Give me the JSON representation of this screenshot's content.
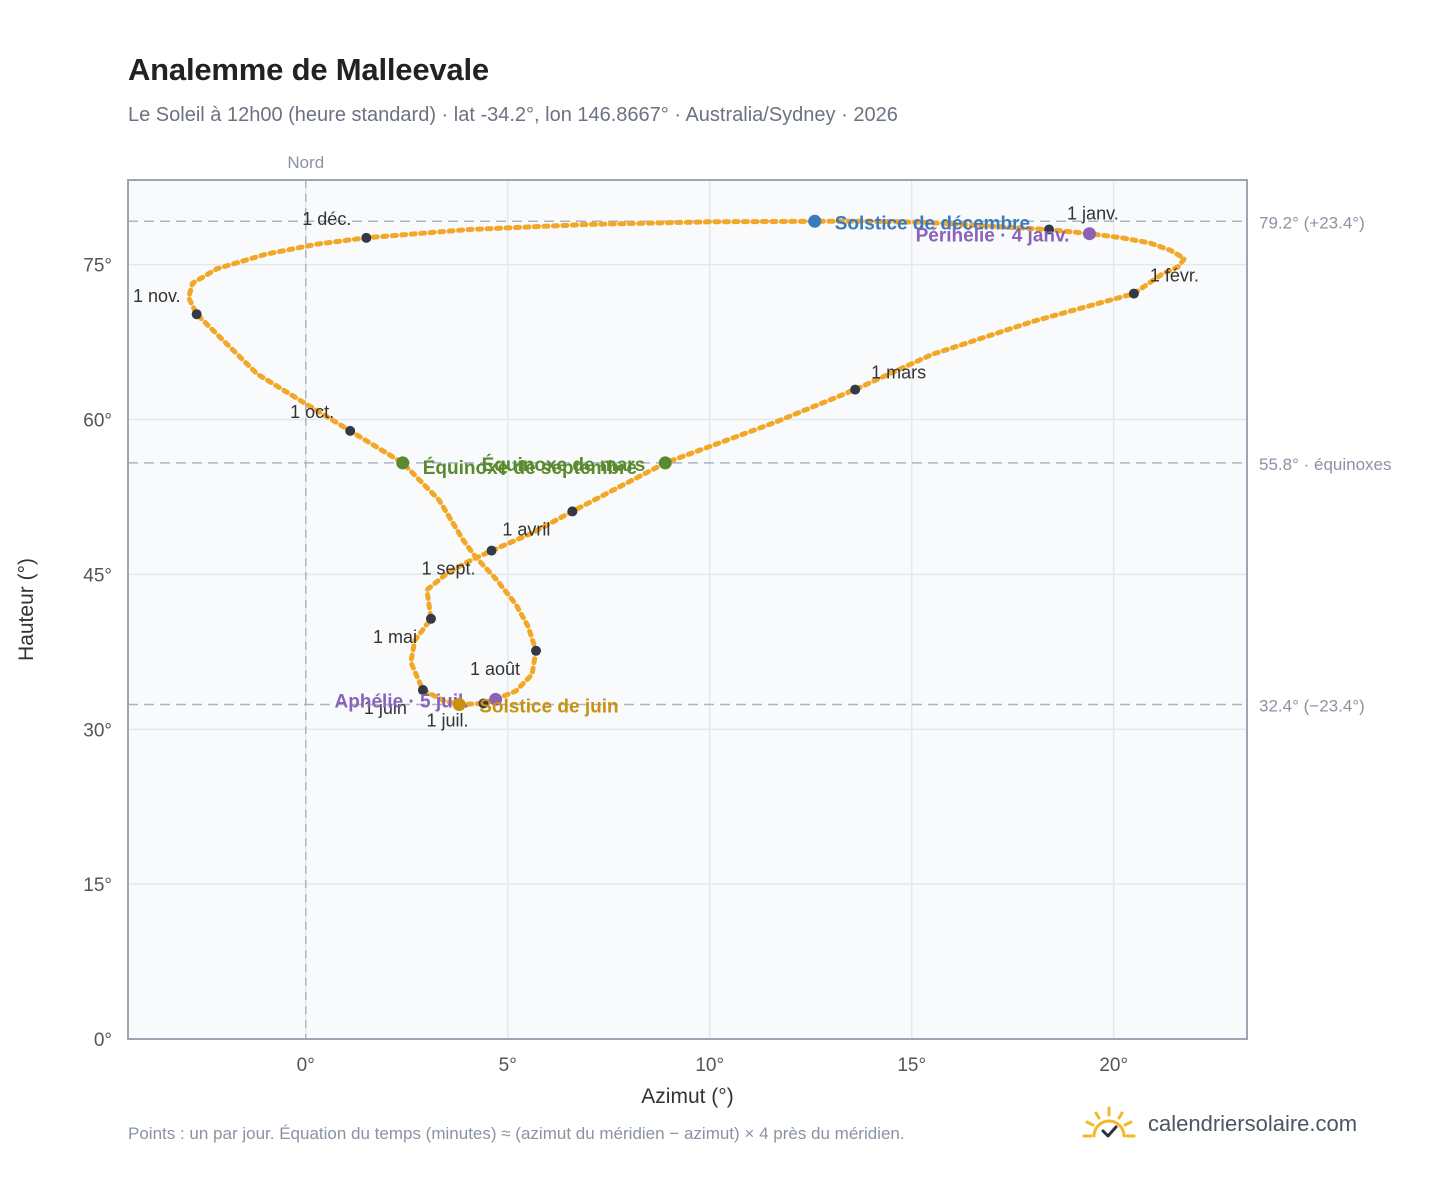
{
  "header": {
    "title": "Analemme de Malleevale",
    "subtitle": "Le Soleil à 12h00 (heure standard) · lat -34.2°, lon 146.8667° · Australia/Sydney · 2026"
  },
  "footer": {
    "note": "Points : un par jour. Équation du temps (minutes) ≈ (azimut du méridien − azimut) × 4 près du méridien.",
    "brand": "calendriersolaire.com",
    "brand_icon": "sun-check-icon"
  },
  "colors": {
    "curve": "#f2a727",
    "month_dot": "#333a45",
    "december": "#3a7abd",
    "perihelion": "#8a63b8",
    "equinox": "#5a8a2e",
    "june": "#c8920f",
    "guide": "#a8b5c3",
    "plot_bg": "#f8fafc",
    "grid": "#e3e8ee"
  },
  "chart_data": {
    "type": "scatter",
    "xlabel": "Azimut (°)",
    "ylabel": "Hauteur (°)",
    "xlim": [
      -4.4,
      23.3
    ],
    "ylim": [
      0,
      83.2
    ],
    "xticks": [
      "0°",
      "5°",
      "10°",
      "15°",
      "20°"
    ],
    "xtick_values": [
      0,
      5,
      10,
      15,
      20
    ],
    "yticks": [
      "0°",
      "15°",
      "30°",
      "45°",
      "60°",
      "75°"
    ],
    "ytick_values": [
      0,
      15,
      30,
      45,
      60,
      75
    ],
    "grid": true,
    "meridian": {
      "x": 0,
      "label": "Nord"
    },
    "reference_lines": [
      {
        "y": 79.2,
        "label": "79.2° (+23.4°)"
      },
      {
        "y": 55.8,
        "label": "55.8° · équinoxes"
      },
      {
        "y": 32.4,
        "label": "32.4° (−23.4°)"
      }
    ],
    "path": [
      [
        15.3,
        79.1
      ],
      [
        17.1,
        78.7
      ],
      [
        18.4,
        78.4
      ],
      [
        19.4,
        78.0
      ],
      [
        20.2,
        77.6
      ],
      [
        20.9,
        77.1
      ],
      [
        21.4,
        76.4
      ],
      [
        21.75,
        75.6
      ],
      [
        21.6,
        74.8
      ],
      [
        21.2,
        74.1
      ],
      [
        20.5,
        72.2
      ],
      [
        18.0,
        69.5
      ],
      [
        15.5,
        66.3
      ],
      [
        13.6,
        62.9
      ],
      [
        11.6,
        59.7
      ],
      [
        8.9,
        55.8
      ],
      [
        6.6,
        51.1
      ],
      [
        5.6,
        49.0
      ],
      [
        4.6,
        47.3
      ],
      [
        4.0,
        46.2
      ],
      [
        3.5,
        45.1
      ],
      [
        3.0,
        43.5
      ],
      [
        3.1,
        40.7
      ],
      [
        2.7,
        38.6
      ],
      [
        2.6,
        36.5
      ],
      [
        2.9,
        33.8
      ],
      [
        3.4,
        32.8
      ],
      [
        3.8,
        32.4
      ],
      [
        4.4,
        32.5
      ],
      [
        4.7,
        32.9
      ],
      [
        5.2,
        33.7
      ],
      [
        5.6,
        35.3
      ],
      [
        5.7,
        37.6
      ],
      [
        5.5,
        40.0
      ],
      [
        5.2,
        42.1
      ],
      [
        4.7,
        44.6
      ],
      [
        4.2,
        46.7
      ],
      [
        3.9,
        48.3
      ],
      [
        3.3,
        52.2
      ],
      [
        2.4,
        55.8
      ],
      [
        1.1,
        58.9
      ],
      [
        -1.2,
        64.4
      ],
      [
        -2.7,
        70.2
      ],
      [
        -2.9,
        71.8
      ],
      [
        -2.8,
        73.2
      ],
      [
        -2.2,
        74.6
      ],
      [
        -1.0,
        76.0
      ],
      [
        0.3,
        77.0
      ],
      [
        1.5,
        77.6
      ],
      [
        4.0,
        78.4
      ],
      [
        7.0,
        78.9
      ],
      [
        10.0,
        79.15
      ],
      [
        12.6,
        79.2
      ],
      [
        14.0,
        79.2
      ],
      [
        15.3,
        79.1
      ]
    ],
    "month_markers": [
      {
        "label": "1 janv.",
        "x": 18.4,
        "y": 78.4,
        "dx": 18,
        "dy": -10,
        "anchor": "start"
      },
      {
        "label": "1 févr.",
        "x": 20.5,
        "y": 72.2,
        "dx": 16,
        "dy": -12,
        "anchor": "start"
      },
      {
        "label": "1 mars",
        "x": 13.6,
        "y": 62.9,
        "dx": 16,
        "dy": -11,
        "anchor": "start"
      },
      {
        "label": "1 avril",
        "x": 6.6,
        "y": 51.1,
        "dx": -70,
        "dy": 24,
        "anchor": "start"
      },
      {
        "label": "1 mai",
        "x": 3.1,
        "y": 40.7,
        "dx": -14,
        "dy": 24,
        "anchor": "end"
      },
      {
        "label": "1 juin",
        "x": 2.9,
        "y": 33.8,
        "dx": -16,
        "dy": 24,
        "anchor": "end"
      },
      {
        "label": "1 juil.",
        "x": 4.4,
        "y": 32.5,
        "dx": -15,
        "dy": 23,
        "anchor": "end"
      },
      {
        "label": "1 août",
        "x": 5.7,
        "y": 37.6,
        "dx": -16,
        "dy": 24,
        "anchor": "end"
      },
      {
        "label": "1 sept.",
        "x": 4.6,
        "y": 47.3,
        "dx": -16,
        "dy": 24,
        "anchor": "end"
      },
      {
        "label": "1 oct.",
        "x": 1.1,
        "y": 58.9,
        "dx": -16,
        "dy": -13,
        "anchor": "end"
      },
      {
        "label": "1 nov.",
        "x": -2.7,
        "y": 70.2,
        "dx": -16,
        "dy": -12,
        "anchor": "end"
      },
      {
        "label": "1 déc.",
        "x": 1.5,
        "y": 77.6,
        "dx": -15,
        "dy": -13,
        "anchor": "end"
      }
    ],
    "events": [
      {
        "label": "Solstice de décembre",
        "x": 12.6,
        "y": 79.2,
        "color": "#3a7abd",
        "dx": 20,
        "dy": 8,
        "anchor": "start"
      },
      {
        "label": "Périhélie · 4 janv.",
        "x": 19.4,
        "y": 78.0,
        "color": "#8a63b8",
        "dx": -20,
        "dy": 8,
        "anchor": "end"
      },
      {
        "label": "Équinoxe de mars",
        "x": 8.9,
        "y": 55.8,
        "color": "#5a8a2e",
        "dx": -20,
        "dy": 8,
        "anchor": "end"
      },
      {
        "label": "Équinoxe de septembre",
        "x": 2.4,
        "y": 55.8,
        "color": "#5a8a2e",
        "dx": 20,
        "dy": 11,
        "anchor": "start"
      },
      {
        "label": "Aphélie · 5 juil.",
        "x": 4.7,
        "y": 32.9,
        "color": "#8a63b8",
        "dx": -27,
        "dy": 8,
        "anchor": "end"
      },
      {
        "label": "Solstice de juin",
        "x": 3.8,
        "y": 32.4,
        "color": "#c8920f",
        "dx": 20,
        "dy": 8,
        "anchor": "start"
      }
    ]
  }
}
